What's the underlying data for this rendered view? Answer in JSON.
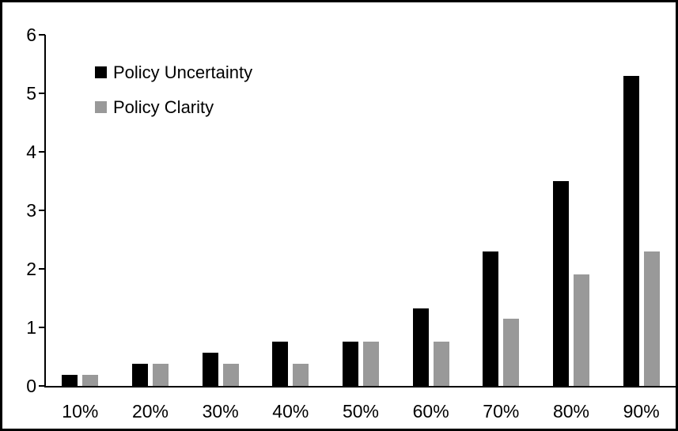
{
  "chart_data": {
    "type": "bar",
    "title": "",
    "categories": [
      "10%",
      "20%",
      "30%",
      "40%",
      "50%",
      "60%",
      "70%",
      "80%",
      "90%"
    ],
    "series": [
      {
        "name": "Policy Uncertainty",
        "color": "#000000",
        "values": [
          0.19,
          0.38,
          0.57,
          0.76,
          0.76,
          1.33,
          2.3,
          3.5,
          5.3
        ]
      },
      {
        "name": "Policy Clarity",
        "color": "#999999",
        "values": [
          0.19,
          0.38,
          0.38,
          0.38,
          0.76,
          0.76,
          1.15,
          1.9,
          2.3
        ]
      }
    ],
    "xlabel": "",
    "ylabel": "",
    "y_ticks": [
      0,
      1,
      2,
      3,
      4,
      5,
      6
    ],
    "ylim": [
      0,
      6
    ],
    "grid": false,
    "legend_position": "top-left-inside",
    "background": "#ffffff",
    "border_color": "#000000"
  }
}
